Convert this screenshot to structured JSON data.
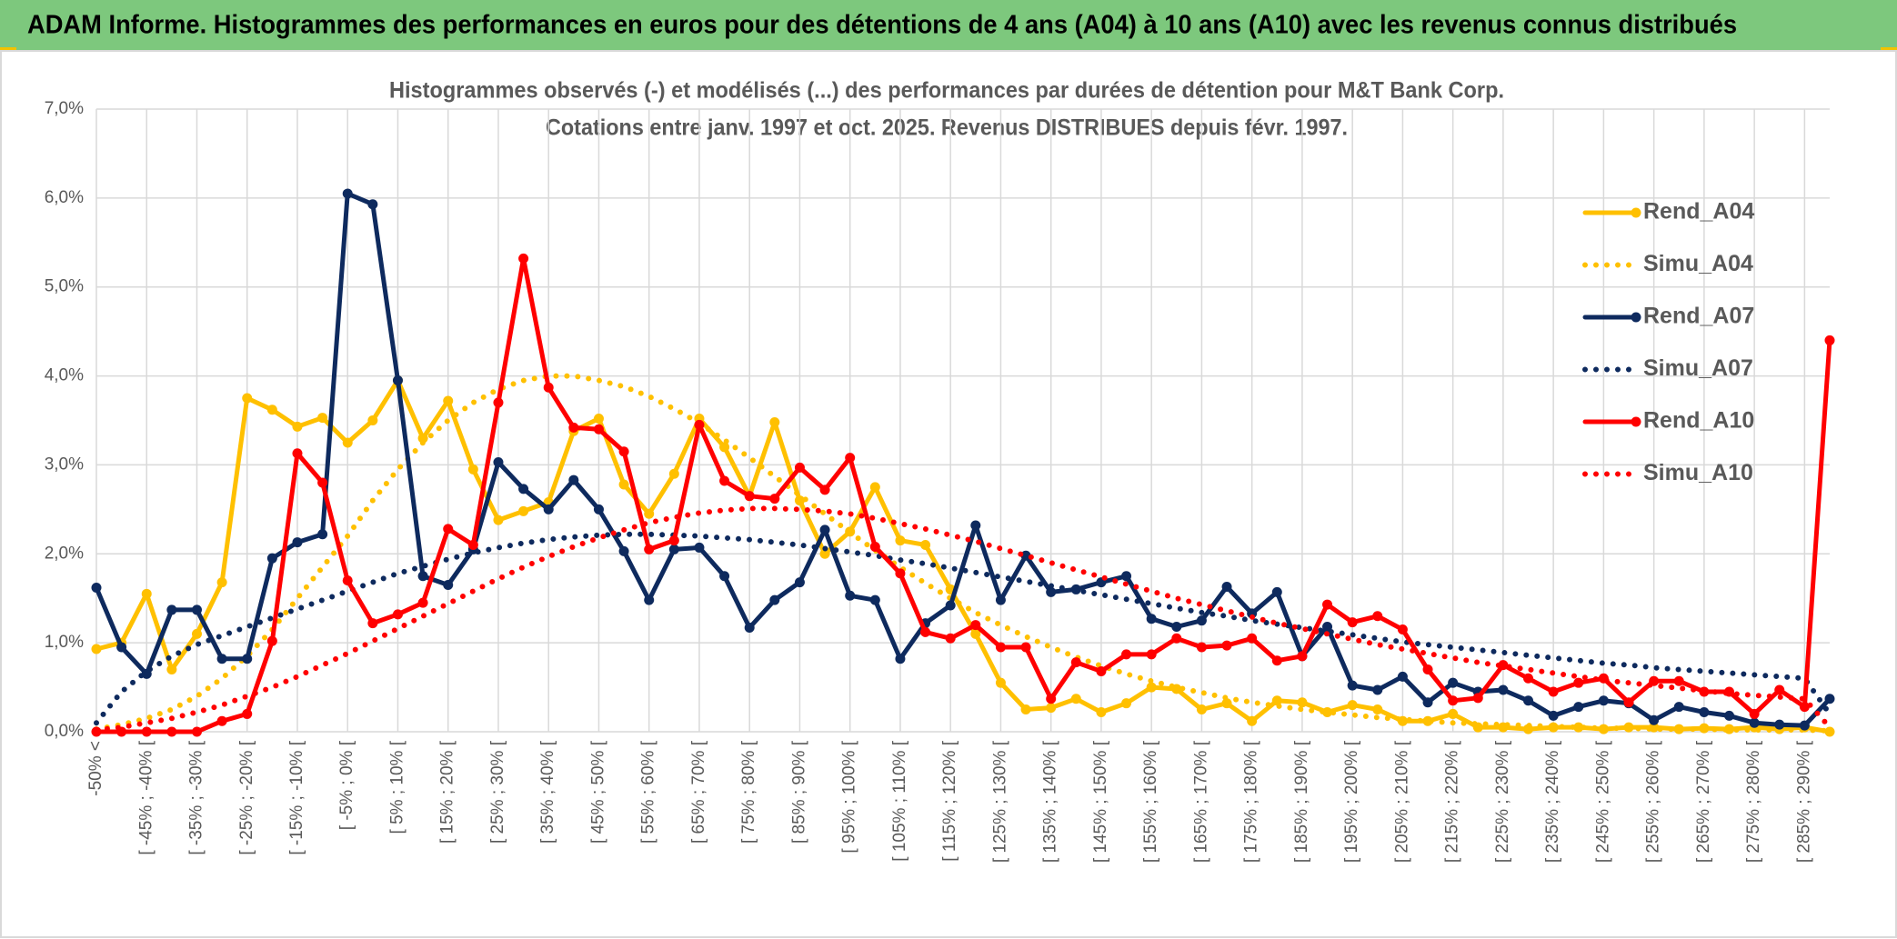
{
  "chart_data": {
    "type": "line",
    "header": "ADAM Informe. Histogrammes des performances en euros pour des détentions de 4 ans (A04) à 10 ans (A10) avec les revenus connus distribués",
    "title": "Histogrammes observés (-) et modélisés (...) des performances par durées de détention pour M&T Bank Corp.",
    "subtitle": "Cotations entre janv. 1997 et oct. 2025. Revenus DISTRIBUES depuis févr. 1997.",
    "categories": [
      "-50% <",
      null,
      "[ -45% ; -40% [",
      null,
      "[ -35% ; -30% [",
      null,
      "[ -25% ; -20% [",
      null,
      "[ -15% ; -10% [",
      null,
      "[ -5% ; 0% [",
      null,
      "[ 5% ; 10% [",
      null,
      "[ 15% ; 20% [",
      null,
      "[ 25% ; 30% [",
      null,
      "[ 35% ; 40% [",
      null,
      "[ 45% ; 50% [",
      null,
      "[ 55% ; 60% [",
      null,
      "[ 65% ; 70% [",
      null,
      "[ 75% ; 80% [",
      null,
      "[ 85% ; 90% [",
      null,
      "[ 95% ; 100% [",
      null,
      "[ 105% ; 110% [",
      null,
      "[ 115% ; 120% [",
      null,
      "[ 125% ; 130% [",
      null,
      "[ 135% ; 140% [",
      null,
      "[ 145% ; 150% [",
      null,
      "[ 155% ; 160% [",
      null,
      "[ 165% ; 170% [",
      null,
      "[ 175% ; 180% [",
      null,
      "[ 185% ; 190% [",
      null,
      "[ 195% ; 200% [",
      null,
      "[ 205% ; 210% [",
      null,
      "[ 215% ; 220% [",
      null,
      "[ 225% ; 230% [",
      null,
      "[ 235% ; 240% [",
      null,
      "[ 245% ; 250% [",
      null,
      "[ 255% ; 260% [",
      null,
      "[ 265% ; 270% [",
      null,
      "[ 275% ; 280% [",
      null,
      "[ 285% ; 290% [",
      null
    ],
    "series": [
      {
        "name": "Rend_A04",
        "color": "#ffc000",
        "style": "solid",
        "values": [
          0.93,
          1.0,
          1.55,
          0.7,
          1.1,
          1.68,
          3.75,
          3.62,
          3.43,
          3.53,
          3.25,
          3.5,
          3.95,
          3.3,
          3.72,
          2.95,
          2.38,
          2.48,
          2.58,
          3.38,
          3.52,
          2.78,
          2.45,
          2.9,
          3.52,
          3.2,
          2.65,
          3.48,
          2.6,
          2.0,
          2.25,
          2.75,
          2.15,
          2.1,
          1.6,
          1.1,
          0.55,
          0.25,
          0.27,
          0.37,
          0.22,
          0.32,
          0.5,
          0.48,
          0.25,
          0.32,
          0.12,
          0.35,
          0.33,
          0.22,
          0.3,
          0.25,
          0.12,
          0.12,
          0.2,
          0.05,
          0.05,
          0.03,
          0.05,
          0.05,
          0.03,
          0.05,
          0.05,
          0.03,
          0.04,
          0.03,
          0.05,
          0.03,
          0.05,
          0.0
        ]
      },
      {
        "name": "Simu_A04",
        "color": "#ffc000",
        "style": "dotted",
        "values": [
          0.03,
          0.08,
          0.15,
          0.25,
          0.4,
          0.6,
          0.85,
          1.15,
          1.5,
          1.85,
          2.2,
          2.6,
          2.95,
          3.25,
          3.5,
          3.7,
          3.85,
          3.95,
          4.0,
          4.0,
          3.95,
          3.88,
          3.77,
          3.63,
          3.47,
          3.28,
          3.08,
          2.87,
          2.66,
          2.45,
          2.24,
          2.04,
          1.85,
          1.67,
          1.5,
          1.34,
          1.2,
          1.07,
          0.95,
          0.84,
          0.74,
          0.65,
          0.57,
          0.5,
          0.44,
          0.38,
          0.33,
          0.29,
          0.25,
          0.22,
          0.19,
          0.16,
          0.14,
          0.12,
          0.1,
          0.09,
          0.08,
          0.07,
          0.06,
          0.05,
          0.04,
          0.04,
          0.03,
          0.03,
          0.03,
          0.02,
          0.02,
          0.02,
          0.02,
          0.01
        ]
      },
      {
        "name": "Rend_A07",
        "color": "#0e2a5e",
        "style": "solid",
        "values": [
          1.62,
          0.95,
          0.65,
          1.37,
          1.37,
          0.82,
          0.82,
          1.95,
          2.13,
          2.22,
          6.05,
          5.93,
          3.95,
          1.75,
          1.65,
          2.05,
          3.03,
          2.73,
          2.5,
          2.83,
          2.5,
          2.03,
          1.48,
          2.05,
          2.07,
          1.75,
          1.17,
          1.48,
          1.68,
          2.27,
          1.53,
          1.48,
          0.82,
          1.22,
          1.42,
          2.32,
          1.48,
          1.98,
          1.57,
          1.6,
          1.68,
          1.75,
          1.27,
          1.18,
          1.25,
          1.63,
          1.33,
          1.57,
          0.85,
          1.18,
          0.52,
          0.47,
          0.62,
          0.33,
          0.55,
          0.45,
          0.47,
          0.35,
          0.18,
          0.28,
          0.35,
          0.32,
          0.13,
          0.28,
          0.22,
          0.18,
          0.1,
          0.08,
          0.07,
          0.37
        ]
      },
      {
        "name": "Simu_A07",
        "color": "#0e2a5e",
        "style": "dotted",
        "values": [
          0.1,
          0.45,
          0.68,
          0.85,
          0.98,
          1.08,
          1.18,
          1.28,
          1.38,
          1.48,
          1.58,
          1.68,
          1.78,
          1.86,
          1.94,
          2.01,
          2.07,
          2.12,
          2.16,
          2.19,
          2.21,
          2.22,
          2.22,
          2.21,
          2.2,
          2.18,
          2.16,
          2.13,
          2.1,
          2.06,
          2.02,
          1.98,
          1.93,
          1.89,
          1.84,
          1.79,
          1.74,
          1.69,
          1.64,
          1.59,
          1.54,
          1.49,
          1.44,
          1.39,
          1.34,
          1.3,
          1.25,
          1.21,
          1.17,
          1.13,
          1.09,
          1.05,
          1.01,
          0.98,
          0.95,
          0.92,
          0.89,
          0.86,
          0.83,
          0.8,
          0.77,
          0.75,
          0.72,
          0.7,
          0.68,
          0.66,
          0.64,
          0.62,
          0.6,
          0.2
        ]
      },
      {
        "name": "Rend_A10",
        "color": "#ff0000",
        "style": "solid",
        "values": [
          0.0,
          0.0,
          0.0,
          0.0,
          0.0,
          0.12,
          0.2,
          1.02,
          3.13,
          2.8,
          1.7,
          1.22,
          1.32,
          1.45,
          2.28,
          2.1,
          3.7,
          5.32,
          3.87,
          3.42,
          3.4,
          3.15,
          2.05,
          2.15,
          3.45,
          2.82,
          2.65,
          2.62,
          2.97,
          2.72,
          3.08,
          2.08,
          1.78,
          1.12,
          1.05,
          1.2,
          0.95,
          0.95,
          0.37,
          0.78,
          0.68,
          0.87,
          0.87,
          1.05,
          0.95,
          0.97,
          1.05,
          0.8,
          0.85,
          1.43,
          1.23,
          1.3,
          1.15,
          0.7,
          0.35,
          0.38,
          0.75,
          0.6,
          0.45,
          0.55,
          0.6,
          0.33,
          0.57,
          0.57,
          0.45,
          0.45,
          0.2,
          0.47,
          0.28,
          4.4
        ]
      },
      {
        "name": "Simu_A10",
        "color": "#ff0000",
        "style": "dotted",
        "values": [
          0.02,
          0.05,
          0.1,
          0.15,
          0.22,
          0.3,
          0.4,
          0.5,
          0.62,
          0.75,
          0.88,
          1.02,
          1.16,
          1.3,
          1.44,
          1.58,
          1.72,
          1.85,
          1.97,
          2.08,
          2.18,
          2.27,
          2.35,
          2.41,
          2.46,
          2.49,
          2.51,
          2.51,
          2.5,
          2.48,
          2.45,
          2.4,
          2.34,
          2.28,
          2.21,
          2.14,
          2.06,
          1.98,
          1.9,
          1.82,
          1.74,
          1.66,
          1.58,
          1.5,
          1.43,
          1.36,
          1.29,
          1.22,
          1.16,
          1.1,
          1.04,
          0.98,
          0.93,
          0.88,
          0.83,
          0.78,
          0.74,
          0.7,
          0.66,
          0.62,
          0.58,
          0.55,
          0.52,
          0.49,
          0.46,
          0.43,
          0.41,
          0.39,
          0.37,
          0.05
        ]
      }
    ],
    "ylim": [
      0,
      7
    ],
    "yticks": [
      {
        "value": 0,
        "label": "0,0%"
      },
      {
        "value": 1,
        "label": "1,0%"
      },
      {
        "value": 2,
        "label": "2,0%"
      },
      {
        "value": 3,
        "label": "3,0%"
      },
      {
        "value": 4,
        "label": "4,0%"
      },
      {
        "value": 5,
        "label": "5,0%"
      },
      {
        "value": 6,
        "label": "6,0%"
      },
      {
        "value": 7,
        "label": "7,0%"
      }
    ],
    "grid": true,
    "legend": "right"
  }
}
